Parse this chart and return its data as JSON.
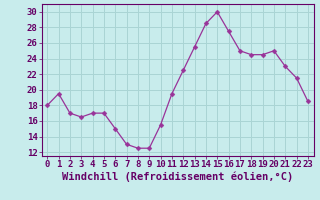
{
  "x": [
    0,
    1,
    2,
    3,
    4,
    5,
    6,
    7,
    8,
    9,
    10,
    11,
    12,
    13,
    14,
    15,
    16,
    17,
    18,
    19,
    20,
    21,
    22,
    23
  ],
  "y": [
    18,
    19.5,
    17,
    16.5,
    17,
    17,
    15,
    13,
    12.5,
    12.5,
    15.5,
    19.5,
    22.5,
    25.5,
    28.5,
    30,
    27.5,
    25,
    24.5,
    24.5,
    25,
    23,
    21.5,
    18.5
  ],
  "line_color": "#993399",
  "marker": "D",
  "marker_size": 2.5,
  "background_color": "#c8ecec",
  "grid_color": "#aad4d4",
  "xlabel": "Windchill (Refroidissement éolien,°C)",
  "ylim": [
    11.5,
    31
  ],
  "xlim": [
    -0.5,
    23.5
  ],
  "yticks": [
    12,
    14,
    16,
    18,
    20,
    22,
    24,
    26,
    28,
    30
  ],
  "xticks": [
    0,
    1,
    2,
    3,
    4,
    5,
    6,
    7,
    8,
    9,
    10,
    11,
    12,
    13,
    14,
    15,
    16,
    17,
    18,
    19,
    20,
    21,
    22,
    23
  ],
  "xlabel_fontsize": 7.5,
  "tick_fontsize": 6.5
}
